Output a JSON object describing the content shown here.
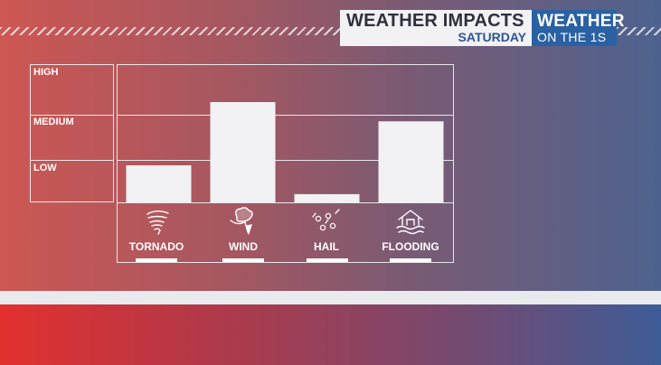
{
  "header": {
    "title": "WEATHER IMPACTS",
    "subtitle": "SATURDAY",
    "brand_line1": "WEATHER",
    "brand_line2": "ON THE 1S"
  },
  "chart_data": {
    "type": "bar",
    "title": "WEATHER IMPACTS",
    "subtitle": "SATURDAY",
    "categories": [
      "TORNADO",
      "WIND",
      "HAIL",
      "FLOODING"
    ],
    "icons": [
      "tornado-icon",
      "wind-icon",
      "hail-icon",
      "flooding-icon"
    ],
    "values": [
      0.27,
      0.73,
      0.06,
      0.59
    ],
    "y_levels": [
      "HIGH",
      "MEDIUM",
      "LOW"
    ],
    "ylim": [
      0,
      1
    ],
    "grid": true,
    "bar_color": "#f2f2f4"
  },
  "colors": {
    "bar": "#f2f2f4",
    "gridline": "#e6e6ea",
    "brand_blue": "#2a61a3"
  }
}
